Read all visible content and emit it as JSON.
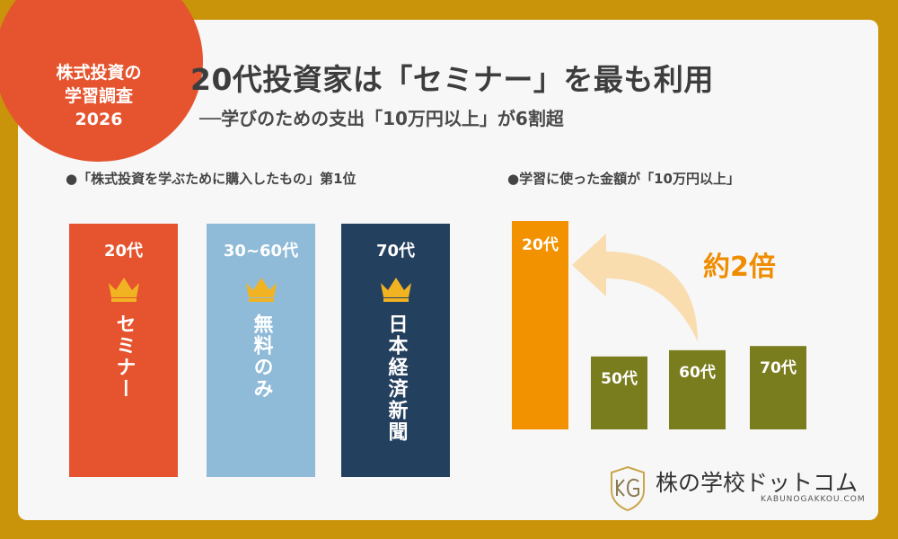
{
  "badge": {
    "line1": "株式投資の",
    "line2": "学習調査",
    "line3": "2026"
  },
  "header": {
    "title": "20代投資家は「セミナー」を最も利用",
    "subtitle": "──学びのための支出「10万円以上」が6割超"
  },
  "left": {
    "label": "●「株式投資を学ぶために購入したもの」第1位",
    "columns": [
      {
        "age": "20代",
        "item": "セミナー",
        "color": "#e5542f"
      },
      {
        "age": "30~60代",
        "item": "無料のみ",
        "color": "#8fbbd9"
      },
      {
        "age": "70代",
        "item": "日本経済新聞",
        "color": "#24405f"
      }
    ],
    "crown_icon": "crown-icon",
    "crown_color": "#f2b322"
  },
  "right": {
    "label": "●学習に使った金額が「10万円以上」",
    "annotation": "約2倍",
    "annotation_color": "#f08c00"
  },
  "chart_data": {
    "type": "bar",
    "categories": [
      "20代",
      "50代",
      "60代",
      "70代"
    ],
    "values": [
      100,
      35,
      38,
      40
    ],
    "colors": [
      "#f39200",
      "#7a7d1e",
      "#7a7d1e",
      "#7a7d1e"
    ],
    "title": "",
    "xlabel": "",
    "ylabel": ""
  },
  "logo": {
    "main": "株の学校ドットコム",
    "sub": "KABUNOGAKKOU.COM"
  }
}
